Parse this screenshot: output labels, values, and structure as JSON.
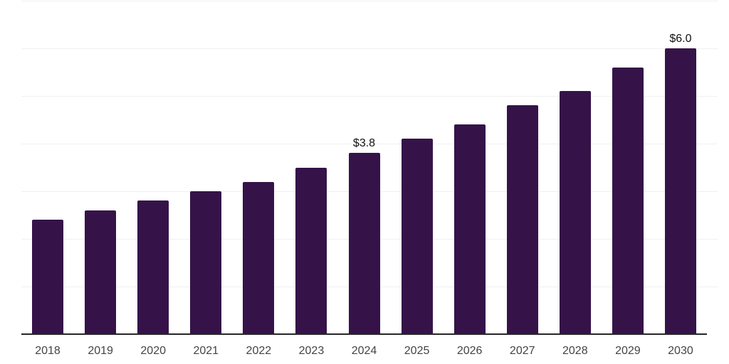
{
  "chart_data": {
    "type": "bar",
    "title": "",
    "xlabel": "",
    "ylabel": "",
    "categories": [
      "2018",
      "2019",
      "2020",
      "2021",
      "2022",
      "2023",
      "2024",
      "2025",
      "2026",
      "2027",
      "2028",
      "2029",
      "2030"
    ],
    "values": [
      2.4,
      2.6,
      2.8,
      3.0,
      3.2,
      3.5,
      3.8,
      4.1,
      4.4,
      4.8,
      5.1,
      5.6,
      6.0
    ],
    "data_labels": {
      "2024": "$3.8",
      "2030": "$6.0"
    },
    "ylim": [
      0,
      7
    ],
    "gridline_step": 1,
    "grid": "horizontal-only",
    "legend": "none",
    "y_tick_labels_visible": false,
    "colors": {
      "bar": "#351349",
      "gridline": "#f0f0f0",
      "axis_line": "#262626",
      "x_tick_label": "#444444",
      "data_label": "#111111",
      "background": "#ffffff"
    }
  }
}
